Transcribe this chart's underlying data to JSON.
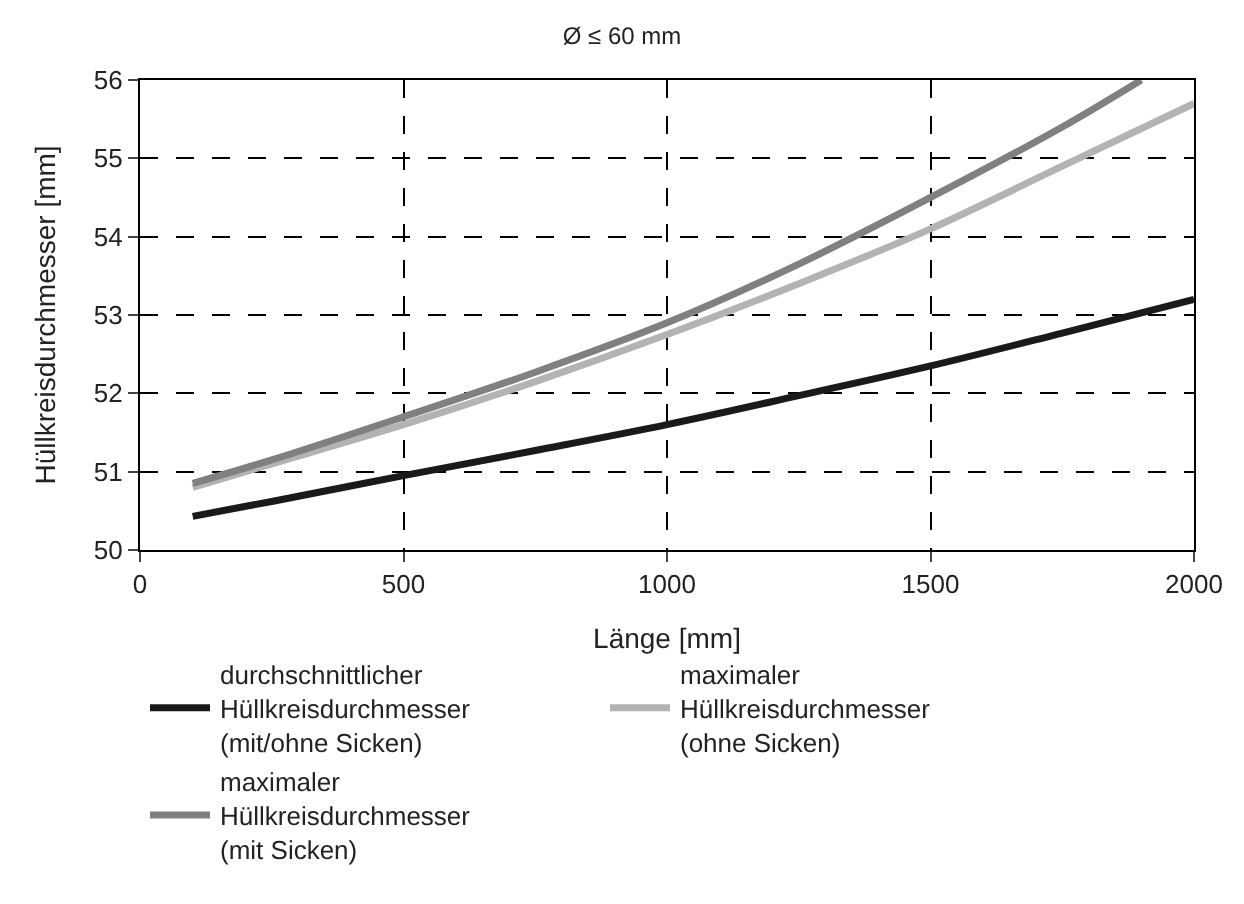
{
  "chart_data": {
    "type": "line",
    "title": "Ø ≤ 60 mm",
    "xlabel": "Länge [mm]",
    "ylabel": "Hüllkreisdurchmesser [mm]",
    "xlim": [
      0,
      2000
    ],
    "xticks": [
      0,
      500,
      1000,
      1500,
      2000
    ],
    "ylim": [
      50,
      56
    ],
    "yticks": [
      50,
      51,
      52,
      53,
      54,
      55,
      56
    ],
    "grid": true,
    "legend": "bottom",
    "line_style": "solid",
    "marker": "none",
    "series": [
      {
        "name": "durchschnittlicher\nHüllkreisdurchmesser\n(mit/ohne Sicken)",
        "color": "#1a1a1a",
        "x": [
          100,
          250,
          500,
          750,
          1000,
          1250,
          1500,
          1750,
          2000
        ],
        "values": [
          50.43,
          50.62,
          50.95,
          51.27,
          51.6,
          51.97,
          52.35,
          52.77,
          53.2
        ]
      },
      {
        "name": "maximaler\nHüllkreisdurchmesser\n(ohne Sicken)",
        "color": "#b3b3b3",
        "x": [
          100,
          250,
          500,
          750,
          1000,
          1250,
          1500,
          1750,
          2000
        ],
        "values": [
          50.8,
          51.1,
          51.6,
          52.15,
          52.75,
          53.4,
          54.1,
          54.9,
          55.7
        ]
      },
      {
        "name": "maximaler\nHüllkreisdurchmesser\n(mit Sicken)",
        "color": "#808080",
        "x": [
          100,
          250,
          500,
          750,
          1000,
          1250,
          1500,
          1750,
          1900
        ],
        "values": [
          50.85,
          51.15,
          51.7,
          52.27,
          52.9,
          53.65,
          54.5,
          55.4,
          56
        ]
      }
    ]
  }
}
